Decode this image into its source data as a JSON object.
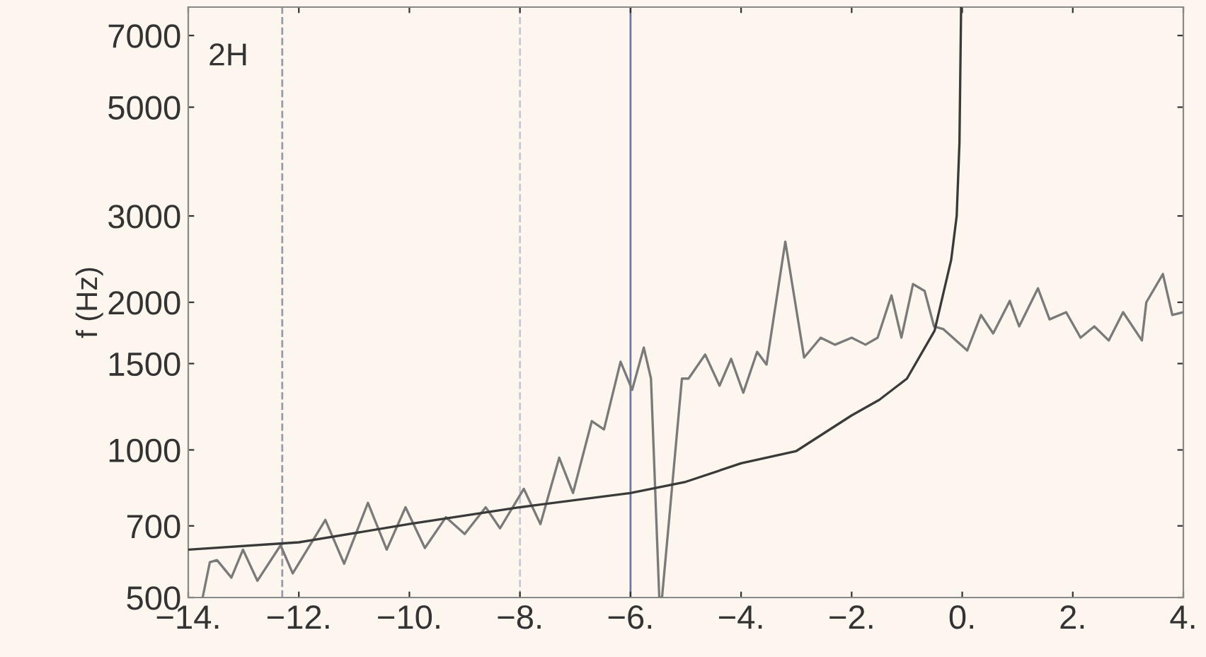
{
  "chart_data": {
    "type": "line",
    "ylabel": "f (Hz)",
    "annotations": [
      "2H"
    ],
    "log": "y",
    "grid": false,
    "legend": false,
    "marker": "none",
    "line_style": "solid",
    "xlim": [
      -14,
      4
    ],
    "ylim": [
      500,
      8000
    ],
    "xticks": [
      {
        "value": -14,
        "label": "−14."
      },
      {
        "value": -12,
        "label": "−12."
      },
      {
        "value": -10,
        "label": "−10."
      },
      {
        "value": -8,
        "label": "−8."
      },
      {
        "value": -6,
        "label": "−6."
      },
      {
        "value": -4,
        "label": "−4."
      },
      {
        "value": -2,
        "label": "−2."
      },
      {
        "value": 0,
        "label": "0."
      },
      {
        "value": 2,
        "label": "2."
      },
      {
        "value": 4,
        "label": "4."
      }
    ],
    "yticks": [
      500,
      700,
      1000,
      1500,
      2000,
      3000,
      5000,
      7000
    ],
    "ref_lines": [
      {
        "axis": "x",
        "value": -12.3,
        "color": "#9a9aa8",
        "line_style": "dashed"
      },
      {
        "axis": "x",
        "value": -8,
        "color": "#c8c8d4",
        "line_style": "dashed"
      },
      {
        "axis": "x",
        "value": -6,
        "color": "#6f78a0",
        "line_style": "solid"
      }
    ],
    "series": [
      {
        "color": "#7a7a7a",
        "x": [
          -13.74,
          -13.61,
          -13.48,
          -13.22,
          -13.01,
          -12.75,
          -12.33,
          -12.11,
          -11.52,
          -11.18,
          -10.75,
          -10.41,
          -10.07,
          -9.72,
          -9.34,
          -9.0,
          -8.62,
          -8.36,
          -7.93,
          -7.63,
          -7.29,
          -7.04,
          -6.7,
          -6.48,
          -6.18,
          -5.97,
          -5.76,
          -5.63,
          -5.48,
          -5.43,
          -5.07,
          -4.95,
          -4.65,
          -4.39,
          -4.18,
          -3.96,
          -3.71,
          -3.54,
          -3.2,
          -2.86,
          -2.56,
          -2.3,
          -2.0,
          -1.75,
          -1.53,
          -1.28,
          -1.1,
          -0.89,
          -0.68,
          -0.51,
          -0.34,
          0.09,
          0.34,
          0.56,
          0.86,
          1.03,
          1.37,
          1.58,
          1.88,
          2.14,
          2.39,
          2.65,
          2.91,
          3.25,
          3.33,
          3.63,
          3.8,
          4.0
        ],
        "values": [
          500,
          590,
          596,
          549,
          626,
          541,
          639,
          560,
          720,
          586,
          780,
          626,
          764,
          631,
          729,
          674,
          764,
          692,
          833,
          706,
          964,
          817,
          1145,
          1101,
          1513,
          1326,
          1617,
          1398,
          500,
          500,
          1398,
          1398,
          1565,
          1352,
          1534,
          1308,
          1585,
          1493,
          2659,
          1543,
          1694,
          1639,
          1694,
          1639,
          1694,
          2066,
          1694,
          2179,
          2109,
          1786,
          1763,
          1595,
          1884,
          1728,
          2013,
          1786,
          2136,
          1846,
          1909,
          1694,
          1786,
          1672,
          1909,
          1672,
          2000,
          2284,
          1884,
          1909
        ]
      },
      {
        "color": "#3a3a3a",
        "x": [
          -14,
          -12,
          -10,
          -8,
          -6,
          -5,
          -4,
          -3,
          -2,
          -1.5,
          -1,
          -0.5,
          -0.2,
          -0.1,
          -0.05,
          -0.02
        ],
        "values": [
          626,
          648,
          706,
          764,
          817,
          861,
          939,
          995,
          1176,
          1265,
          1398,
          1750,
          2440,
          3000,
          4230,
          8000
        ]
      }
    ]
  }
}
